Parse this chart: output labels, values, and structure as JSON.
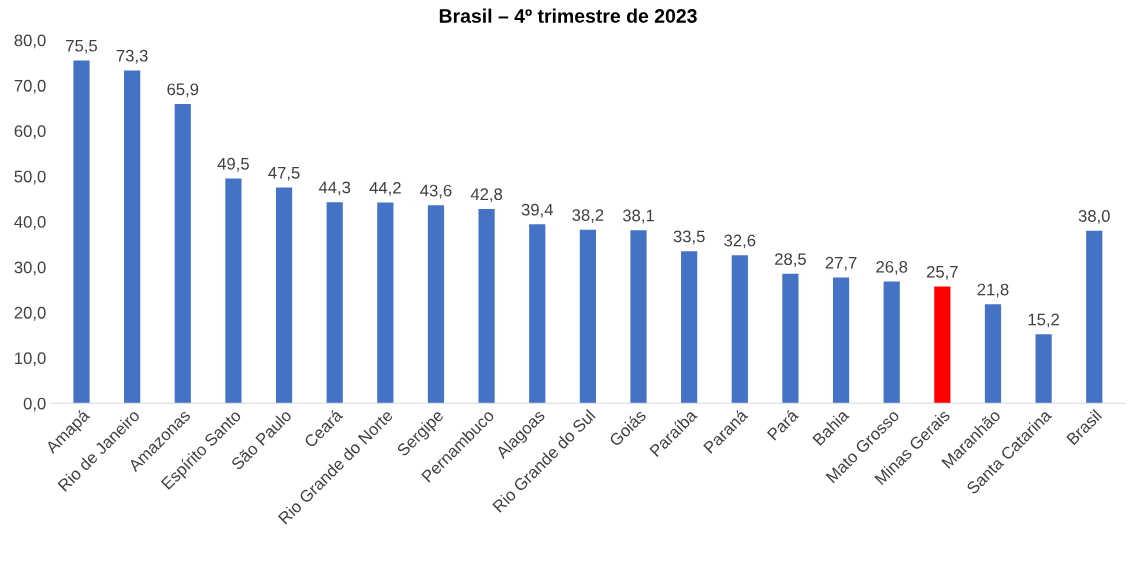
{
  "chart_data": {
    "type": "bar",
    "title": "Brasil – 4º trimestre de 2023",
    "categories": [
      "Amapá",
      "Rio de Janeiro",
      "Amazonas",
      "Espírito Santo",
      "São Paulo",
      "Ceará",
      "Rio Grande do Norte",
      "Sergipe",
      "Pernambuco",
      "Alagoas",
      "Rio Grande do Sul",
      "Goiás",
      "Paraíba",
      "Paraná",
      "Pará",
      "Bahia",
      "Mato Grosso",
      "Minas Gerais",
      "Maranhão",
      "Santa Catarina",
      "Brasil"
    ],
    "values": [
      75.5,
      73.3,
      65.9,
      49.5,
      47.5,
      44.3,
      44.2,
      43.6,
      42.8,
      39.4,
      38.2,
      38.1,
      33.5,
      32.6,
      28.5,
      27.7,
      26.8,
      25.7,
      21.8,
      15.2,
      38.0
    ],
    "value_labels": [
      "75,5",
      "73,3",
      "65,9",
      "49,5",
      "47,5",
      "44,3",
      "44,2",
      "43,6",
      "42,8",
      "39,4",
      "38,2",
      "38,1",
      "33,5",
      "32,6",
      "28,5",
      "27,7",
      "26,8",
      "25,7",
      "21,8",
      "15,2",
      "38,0"
    ],
    "colors": [
      "#4472c4",
      "#4472c4",
      "#4472c4",
      "#4472c4",
      "#4472c4",
      "#4472c4",
      "#4472c4",
      "#4472c4",
      "#4472c4",
      "#4472c4",
      "#4472c4",
      "#4472c4",
      "#4472c4",
      "#4472c4",
      "#4472c4",
      "#4472c4",
      "#4472c4",
      "#ff0000",
      "#4472c4",
      "#4472c4",
      "#4472c4"
    ],
    "ylim": [
      0,
      80
    ],
    "yticks": [
      {
        "value": 0,
        "label": "0,0"
      },
      {
        "value": 10,
        "label": "10,0"
      },
      {
        "value": 20,
        "label": "20,0"
      },
      {
        "value": 30,
        "label": "30,0"
      },
      {
        "value": 40,
        "label": "40,0"
      },
      {
        "value": 50,
        "label": "50,0"
      },
      {
        "value": 60,
        "label": "60,0"
      },
      {
        "value": 70,
        "label": "70,0"
      },
      {
        "value": 80,
        "label": "80,0"
      }
    ],
    "grid": false
  }
}
